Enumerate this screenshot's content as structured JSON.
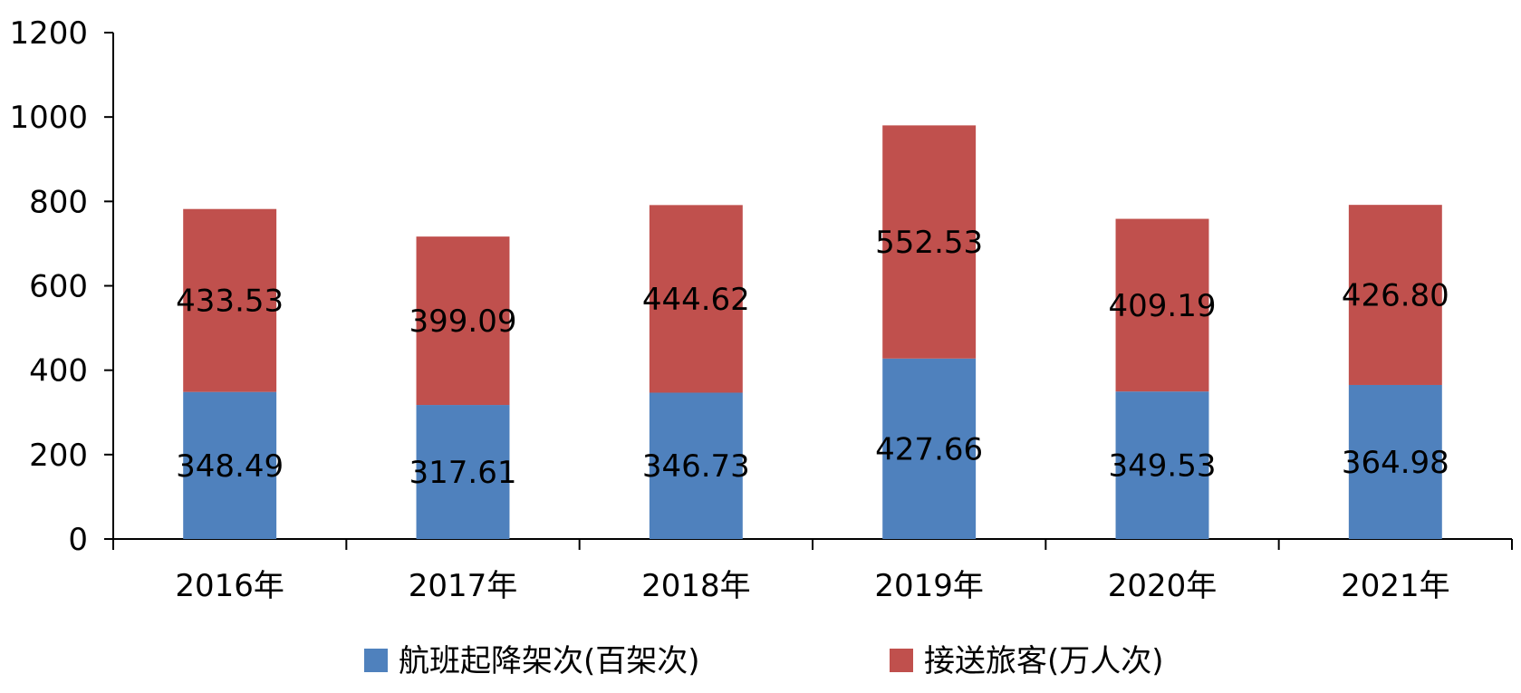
{
  "chart_data": {
    "type": "bar",
    "stacked": true,
    "categories": [
      "2016年",
      "2017年",
      "2018年",
      "2019年",
      "2020年",
      "2021年"
    ],
    "series": [
      {
        "name": "航班起降架次(百架次)",
        "values": [
          348.49,
          317.61,
          346.73,
          427.66,
          349.53,
          364.98
        ],
        "labels": [
          "348.49",
          "317.61",
          "346.73",
          "427.66",
          "349.53",
          "364.98"
        ],
        "color": "#4f81bd"
      },
      {
        "name": "接送旅客(万人次)",
        "values": [
          433.53,
          399.09,
          444.62,
          552.53,
          409.19,
          426.8
        ],
        "labels": [
          "433.53",
          "399.09",
          "444.62",
          "552.53",
          "409.19",
          "426.80"
        ],
        "color": "#c0504d"
      }
    ],
    "title": "",
    "xlabel": "",
    "ylabel": "",
    "ylim": [
      0,
      1200
    ],
    "yticks": [
      0,
      200,
      400,
      600,
      800,
      1000,
      1200
    ],
    "ytick_labels": [
      "0",
      "200",
      "400",
      "600",
      "800",
      "1000",
      "1200"
    ],
    "grid": false,
    "legend": "bottom"
  }
}
